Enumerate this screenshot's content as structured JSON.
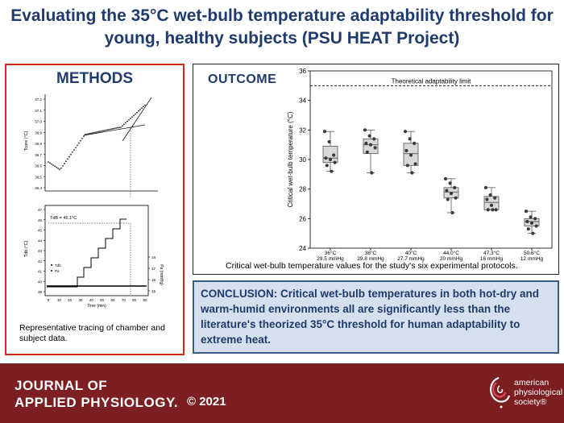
{
  "title": {
    "line1": "Evaluating the 35°C wet-bulb temperature adaptability threshold for",
    "line2": "young, healthy subjects (PSU HEAT Project)"
  },
  "methods": {
    "heading": "METHODS",
    "caption": "Representative tracing of chamber and subject data.",
    "top_plot": {
      "ylabel": "Tcore (°C)",
      "yticks": [
        "37.2",
        "37.1",
        "37.0",
        "36.9",
        "36.8",
        "36.7",
        "36.6",
        "36.5",
        "36.4"
      ]
    },
    "bottom_plot": {
      "ylabel": "Tdb (°C)",
      "y2label": "Pa (mmHg)",
      "yticks": [
        "47",
        "46",
        "45",
        "44",
        "43",
        "42",
        "41",
        "40",
        "39"
      ],
      "y2ticks": [
        "18",
        "17",
        "16",
        "15"
      ],
      "xticks": [
        "0",
        "10",
        "20",
        "30",
        "40",
        "50",
        "60",
        "70",
        "80",
        "90"
      ],
      "xlabel": "Time (min)",
      "annotation": "TdB = 46.1°C",
      "legend": [
        "Tdb",
        "Pa"
      ]
    }
  },
  "outcome": {
    "heading": "OUTCOME",
    "caption": "Critical wet-bulb temperature values for the study's six experimental protocols."
  },
  "chart_data": {
    "type": "box",
    "title": "",
    "ylabel": "Critical wet-bulb temperature (°C)",
    "xlabel": "",
    "ylim": [
      24,
      36
    ],
    "yticks": [
      24,
      26,
      28,
      30,
      32,
      34,
      36
    ],
    "reference_line": {
      "value": 35,
      "label": "Theoretical adaptability limit",
      "style": "dashed"
    },
    "categories": [
      "36°C",
      "38°C",
      "40°C",
      "44.0°C",
      "47.3°C",
      "50.6°C"
    ],
    "category_sublabels": [
      "29.5 mmHg",
      "29.8 mmHg",
      "27.7 mmHg",
      "20 mmHg",
      "16 mmHg",
      "12 mmHg"
    ],
    "boxes": [
      {
        "whisker_low": 29.2,
        "q1": 29.8,
        "median": 30.1,
        "q3": 30.9,
        "whisker_high": 31.9
      },
      {
        "whisker_low": 29.1,
        "q1": 30.4,
        "median": 31.0,
        "q3": 31.4,
        "whisker_high": 32.0
      },
      {
        "whisker_low": 29.1,
        "q1": 29.6,
        "median": 30.4,
        "q3": 31.1,
        "whisker_high": 31.9
      },
      {
        "whisker_low": 26.4,
        "q1": 27.4,
        "median": 27.8,
        "q3": 28.1,
        "whisker_high": 28.7
      },
      {
        "whisker_low": 26.6,
        "q1": 26.6,
        "median": 27.1,
        "q3": 27.5,
        "whisker_high": 28.1
      },
      {
        "whisker_low": 25.0,
        "q1": 25.5,
        "median": 25.8,
        "q3": 26.0,
        "whisker_high": 26.5
      }
    ],
    "points": [
      [
        31.9,
        31.2,
        30.3,
        30.1,
        30.0,
        29.8,
        29.6,
        29.2
      ],
      [
        32.0,
        31.6,
        31.4,
        31.1,
        31.0,
        30.8,
        30.5,
        29.1
      ],
      [
        31.9,
        31.4,
        31.1,
        30.6,
        30.3,
        29.7,
        29.6,
        29.1
      ],
      [
        28.7,
        28.4,
        28.1,
        27.9,
        27.7,
        27.4,
        27.3,
        26.4
      ],
      [
        28.1,
        27.6,
        27.4,
        27.3,
        26.9,
        26.6,
        26.6,
        26.6
      ],
      [
        26.5,
        26.1,
        26.0,
        25.8,
        25.7,
        25.5,
        25.3,
        25.0
      ]
    ]
  },
  "conclusion": {
    "label": "CONCLUSION:",
    "text": " Critical wet-bulb temperatures in both hot-dry and warm-humid environments all are significantly less than the literature's theorized 35°C threshold for human adaptability to extreme heat."
  },
  "footer": {
    "journal_line1": "JOURNAL OF",
    "journal_line2": "APPLIED PHYSIOLOGY.",
    "copyright": "© 2021",
    "society_line1": "american",
    "society_line2": "physiological",
    "society_line3": "society®"
  },
  "colors": {
    "title": "#1f3a6d",
    "methods_border": "#d9261c",
    "conclusion_bg": "#d5e0ee",
    "footer_bg": "#7b1f22",
    "box_fill": "#d9d9d9"
  }
}
